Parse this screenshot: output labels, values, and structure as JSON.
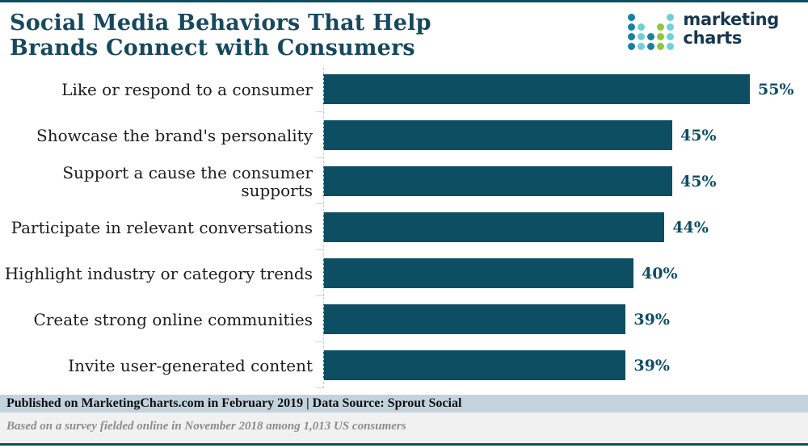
{
  "header": {
    "title_line1": "Social Media Behaviors That Help",
    "title_line2": "Brands Connect with Consumers"
  },
  "logo": {
    "text_line1": "marketing",
    "text_line2": "charts",
    "dot_colors": {
      "t": "#1781a1",
      "c": "#6fd1d8",
      "g": "#8fc73e"
    },
    "dot_grid": [
      [
        "t",
        "",
        "",
        "",
        "c"
      ],
      [
        "t",
        "c",
        "",
        "g",
        "c"
      ],
      [
        "t",
        "c",
        "t",
        "g",
        "c"
      ],
      [
        "t",
        "c",
        "t",
        "g",
        "c"
      ]
    ]
  },
  "chart_data": {
    "type": "bar",
    "orientation": "horizontal",
    "title": "Social Media Behaviors That Help Brands Connect with Consumers",
    "categories": [
      "Like or respond to a consumer",
      "Showcase the brand's personality",
      "Support a cause the consumer supports",
      "Participate in relevant conversations",
      "Highlight industry or category trends",
      "Create strong online communities",
      "Invite user-generated content"
    ],
    "values": [
      55,
      45,
      45,
      44,
      40,
      39,
      39
    ],
    "value_suffix": "%",
    "xlim": [
      0,
      62.5
    ],
    "grid": "dashed left axis with tick marks between rows, no value axis labels",
    "legend": "none",
    "bar_color": "#0d4e63",
    "value_label_color": "#0d4e63"
  },
  "footer": {
    "published_line": "Published on MarketingCharts.com in February 2019 | Data Source: Sprout Social",
    "note_line": "Based on a survey fielded online in November 2018 among 1,013 US consumers"
  }
}
